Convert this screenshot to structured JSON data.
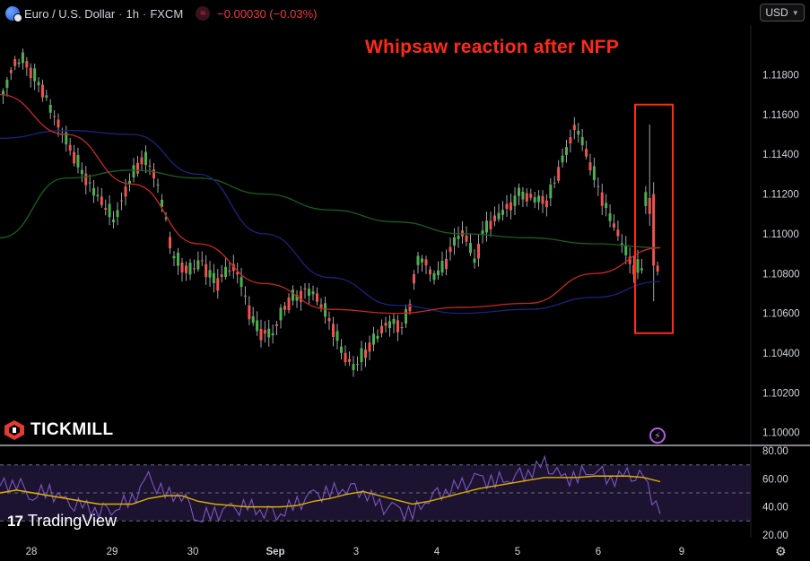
{
  "header": {
    "symbol": "Euro / U.S. Dollar",
    "interval": "1h",
    "exchange": "FXCM",
    "change": "−0.00030 (−0.03%)",
    "change_icon": "wave-icon",
    "sep1": "·",
    "sep2": "·"
  },
  "currency_button": "USD",
  "annotation": "Whipsaw reaction after NFP",
  "brand": "TICKMILL",
  "watermark": "TradingView",
  "watermark_mark": "17",
  "colors": {
    "up": "#26a69a",
    "up_bright": "#4caf50",
    "down": "#ef5350",
    "wick": "#9ea3aa",
    "ma_fast": "#c62828",
    "ma_mid": "#1a237e",
    "ma_slow": "#1b5e20",
    "rsi": "#7e57c2",
    "rsi_ma": "#e0b000",
    "highlight": "#ff2a1a"
  },
  "chart_data": [
    {
      "type": "candlestick",
      "title": "",
      "xlabel": "",
      "ylabel": "",
      "x_ticks": [
        "28",
        "29",
        "30",
        "Sep",
        "3",
        "4",
        "5",
        "6",
        "9"
      ],
      "y_ticks": [
        "1.11800",
        "1.11600",
        "1.11400",
        "1.11200",
        "1.11000",
        "1.10800",
        "1.10600",
        "1.10400",
        "1.10200",
        "1.10000"
      ],
      "ylim": [
        1.0994,
        1.1205
      ],
      "grid": false,
      "segments": [
        {
          "label": "28",
          "points": [
            1.117,
            1.1185,
            1.1188,
            1.118,
            1.1172,
            1.116,
            1.115,
            1.114,
            1.113,
            1.1122,
            1.1115,
            1.1108
          ]
        },
        {
          "label": "29",
          "points": [
            1.1106,
            1.1115,
            1.1125,
            1.1132,
            1.1138,
            1.1135,
            1.1125,
            1.111,
            1.109,
            1.1085,
            1.1082,
            1.1081
          ]
        },
        {
          "label": "30",
          "points": [
            1.1083,
            1.1086,
            1.108,
            1.1075,
            1.108,
            1.1083,
            1.108,
            1.1065,
            1.1055,
            1.105,
            1.105,
            1.105
          ]
        },
        {
          "label": "Sep",
          "points": [
            1.1055,
            1.1062,
            1.1068,
            1.1068,
            1.1072,
            1.107,
            1.1065,
            1.1058,
            1.105,
            1.104,
            1.1035,
            1.1032
          ]
        },
        {
          "label": "3",
          "points": [
            1.1035,
            1.104,
            1.1045,
            1.105,
            1.1055,
            1.1055,
            1.1053,
            1.106,
            1.1085,
            1.1088,
            1.108,
            1.1078
          ]
        },
        {
          "label": "4",
          "points": [
            1.108,
            1.1085,
            1.1095,
            1.11,
            1.1098,
            1.1085,
            1.11,
            1.1105,
            1.1108,
            1.1112,
            1.1115,
            1.1118
          ]
        },
        {
          "label": "5",
          "points": [
            1.112,
            1.1116,
            1.1155,
            1.1115,
            1.1083,
            1.1081
          ]
        }
      ],
      "ma_fast": [
        1.117,
        1.115,
        1.1125,
        1.1095,
        1.1075,
        1.1062,
        1.106,
        1.1063,
        1.1065,
        1.108,
        1.1093
      ],
      "ma_mid": [
        1.1148,
        1.1152,
        1.115,
        1.113,
        1.11,
        1.1078,
        1.1064,
        1.106,
        1.1062,
        1.1068,
        1.1076
      ],
      "ma_slow": [
        1.1098,
        1.1128,
        1.1132,
        1.1128,
        1.112,
        1.1112,
        1.1106,
        1.11,
        1.1098,
        1.1095,
        1.1093
      ],
      "highlight_box": {
        "x_from": "6",
        "price_low": 1.105,
        "price_high": 1.1165
      }
    },
    {
      "type": "line",
      "title": "",
      "xlabel": "",
      "ylabel": "",
      "y_ticks": [
        "80.00",
        "60.00",
        "40.00",
        "20.00"
      ],
      "ylim": [
        18,
        82
      ],
      "levels": [
        70,
        50,
        30
      ],
      "series": [
        {
          "values": [
            55,
            58,
            48,
            52,
            42,
            40,
            38,
            40,
            45,
            60,
            48,
            50,
            32,
            35,
            38,
            40,
            38,
            36,
            42,
            48,
            50,
            55,
            52,
            40,
            38,
            35,
            48,
            52,
            55,
            60,
            58,
            62,
            65,
            70,
            60,
            62,
            68,
            60,
            62,
            60,
            35
          ]
        },
        {
          "values": [
            50,
            52,
            50,
            48,
            46,
            44,
            42,
            42,
            42,
            46,
            48,
            48,
            44,
            42,
            41,
            40,
            40,
            40,
            41,
            44,
            46,
            49,
            51,
            48,
            45,
            42,
            44,
            47,
            50,
            53,
            55,
            57,
            59,
            61,
            61,
            61,
            62,
            62,
            62,
            61,
            58
          ]
        }
      ]
    }
  ]
}
